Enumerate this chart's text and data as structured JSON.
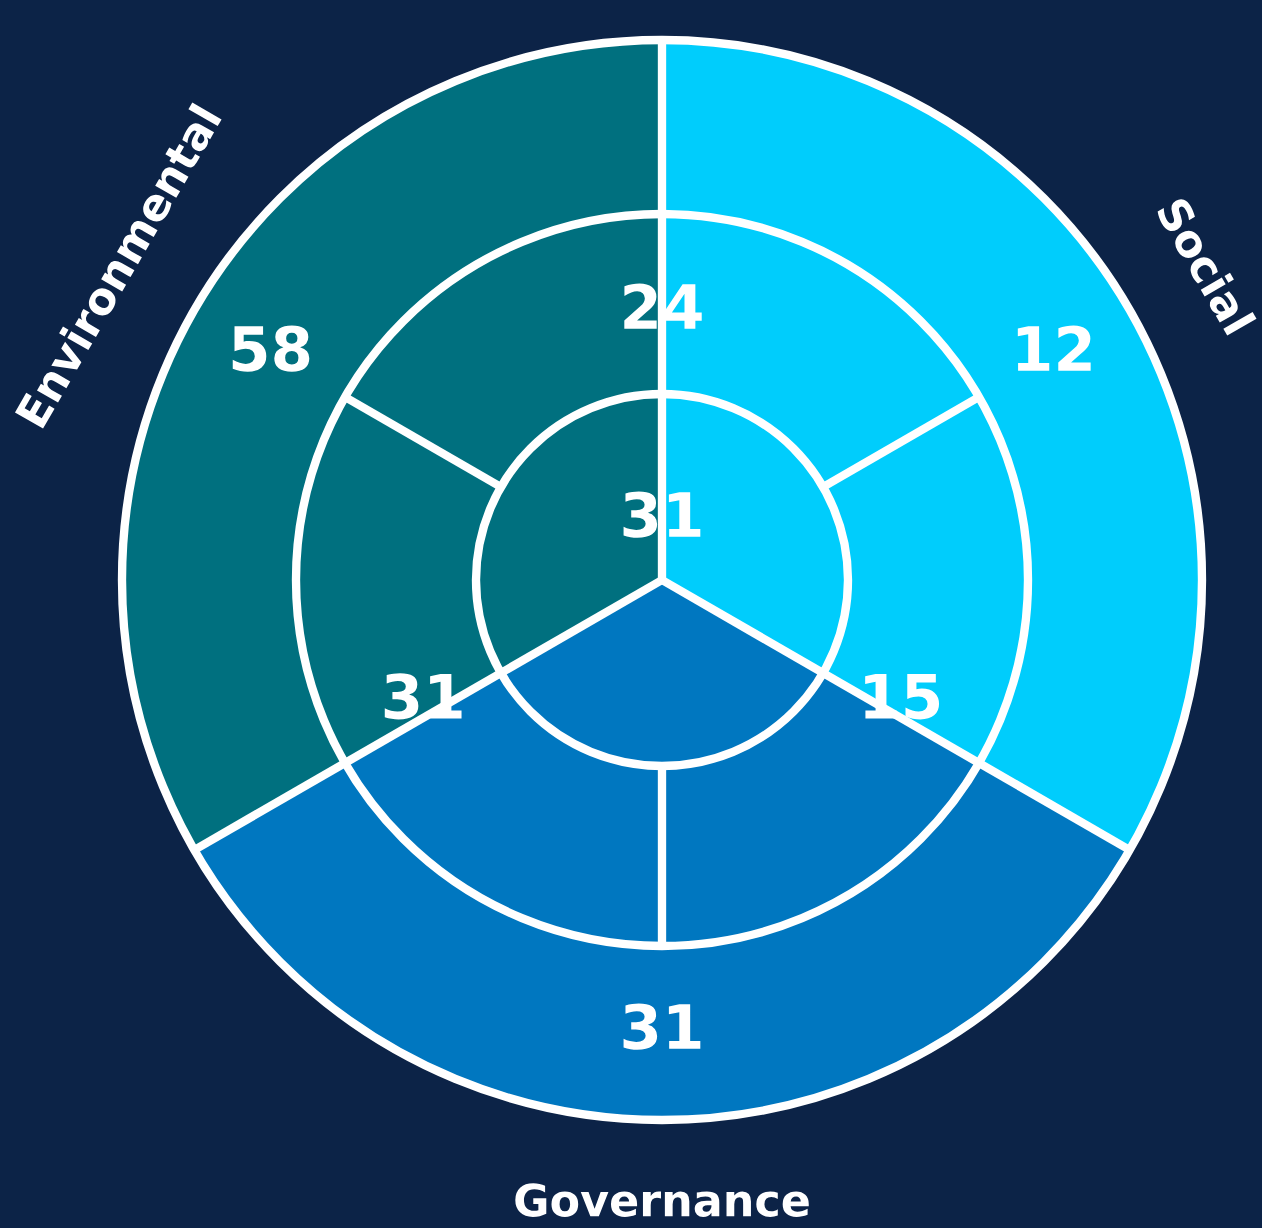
{
  "chart_data": {
    "type": "other",
    "categories": [
      "Environmental",
      "Social",
      "Governance"
    ],
    "colors": [
      "#00707f",
      "#00cdfc",
      "#0077c0"
    ],
    "values": [
      58,
      12,
      31
    ],
    "data_labels": true,
    "annotations": [
      "24",
      "15",
      "31",
      "31"
    ]
  }
}
